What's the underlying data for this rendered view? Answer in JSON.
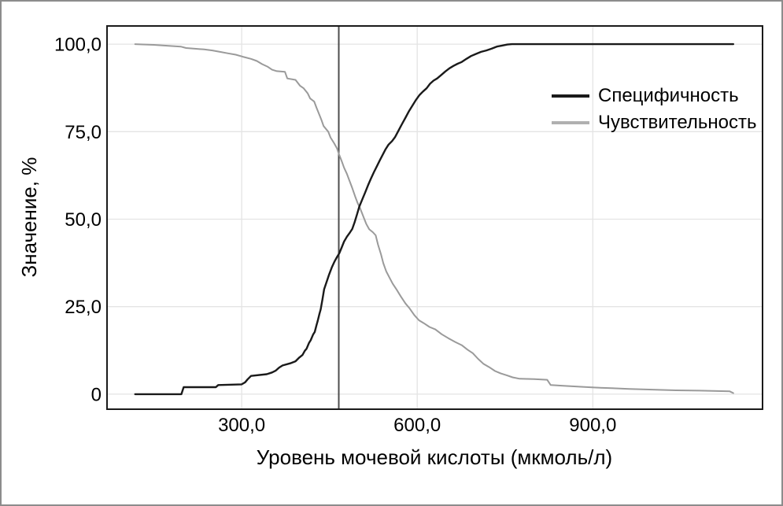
{
  "figure": {
    "background_color": "#ffffff",
    "outer_border_color": "#8c8c8c"
  },
  "colors": {
    "plot_border": "#1a1a1a",
    "gridline": "#e4e4e4",
    "reference_line": "#4d4d4d",
    "text": "#000000",
    "specificity": "#1a1a1a",
    "sensitivity": "#9a9a9a",
    "sensitivity_swatch": "#b0b0b0"
  },
  "chart_data": {
    "type": "line",
    "title": "",
    "xlabel": "Уровень мочевой кислоты (мкмоль/л)",
    "ylabel": "Значение, %",
    "xlim": [
      70,
      1190
    ],
    "ylim": [
      -4.3,
      105.2
    ],
    "grid": true,
    "legend_position": "inside-upper-right",
    "reference_line_x": 466,
    "x_ticks": [
      {
        "value": 300,
        "label": "300,0"
      },
      {
        "value": 600,
        "label": "600,0"
      },
      {
        "value": 900,
        "label": "900,0"
      }
    ],
    "y_ticks": [
      {
        "value": 0,
        "label": "0"
      },
      {
        "value": 25,
        "label": "25,0"
      },
      {
        "value": 50,
        "label": "50,0"
      },
      {
        "value": 75,
        "label": "75,0"
      },
      {
        "value": 100,
        "label": "100,0"
      }
    ],
    "series": [
      {
        "name": "Специфичность",
        "color": "#1a1a1a",
        "stroke_width": 2.4,
        "points": [
          [
            118,
            0
          ],
          [
            165,
            0
          ],
          [
            197,
            0
          ],
          [
            201,
            2.0
          ],
          [
            256,
            2.0
          ],
          [
            260,
            2.6
          ],
          [
            300,
            2.8
          ],
          [
            306,
            3.4
          ],
          [
            310,
            4.2
          ],
          [
            316,
            5.2
          ],
          [
            343,
            5.7
          ],
          [
            352,
            6.2
          ],
          [
            358,
            6.7
          ],
          [
            364,
            7.6
          ],
          [
            370,
            8.2
          ],
          [
            383,
            8.8
          ],
          [
            392,
            9.4
          ],
          [
            398,
            10.4
          ],
          [
            404,
            11.2
          ],
          [
            408,
            12.4
          ],
          [
            411,
            13.0
          ],
          [
            415,
            14.6
          ],
          [
            418,
            15.4
          ],
          [
            422,
            17.0
          ],
          [
            425,
            17.8
          ],
          [
            428,
            19.8
          ],
          [
            430,
            21.0
          ],
          [
            433,
            23.0
          ],
          [
            435,
            24.2
          ],
          [
            438,
            27.0
          ],
          [
            441,
            30.0
          ],
          [
            445,
            32.0
          ],
          [
            449,
            34.0
          ],
          [
            454,
            36.2
          ],
          [
            459,
            38.0
          ],
          [
            463,
            39.2
          ],
          [
            467,
            40.3
          ],
          [
            471,
            41.9
          ],
          [
            475,
            43.6
          ],
          [
            480,
            45.0
          ],
          [
            485,
            46.2
          ],
          [
            489,
            47.2
          ],
          [
            493,
            49.1
          ],
          [
            497,
            51.3
          ],
          [
            501,
            53.6
          ],
          [
            506,
            55.6
          ],
          [
            511,
            57.6
          ],
          [
            516,
            59.7
          ],
          [
            521,
            61.6
          ],
          [
            526,
            63.4
          ],
          [
            531,
            65.1
          ],
          [
            536,
            66.8
          ],
          [
            541,
            68.4
          ],
          [
            546,
            70.0
          ],
          [
            551,
            71.3
          ],
          [
            557,
            72.3
          ],
          [
            562,
            73.4
          ],
          [
            568,
            75.3
          ],
          [
            574,
            77.2
          ],
          [
            580,
            79.0
          ],
          [
            586,
            80.9
          ],
          [
            592,
            82.5
          ],
          [
            598,
            84.1
          ],
          [
            604,
            85.5
          ],
          [
            610,
            86.5
          ],
          [
            616,
            87.4
          ],
          [
            622,
            88.7
          ],
          [
            628,
            89.6
          ],
          [
            634,
            90.2
          ],
          [
            641,
            91.2
          ],
          [
            648,
            92.2
          ],
          [
            655,
            93.1
          ],
          [
            662,
            93.8
          ],
          [
            669,
            94.4
          ],
          [
            676,
            94.9
          ],
          [
            684,
            95.8
          ],
          [
            692,
            96.6
          ],
          [
            700,
            97.2
          ],
          [
            709,
            97.8
          ],
          [
            718,
            98.2
          ],
          [
            727,
            98.7
          ],
          [
            736,
            99.3
          ],
          [
            745,
            99.6
          ],
          [
            754,
            99.9
          ],
          [
            762,
            100
          ],
          [
            850,
            100
          ],
          [
            1000,
            100
          ],
          [
            1140,
            100
          ]
        ]
      },
      {
        "name": "Чувствительность",
        "color": "#9a9a9a",
        "stroke_width": 2,
        "points": [
          [
            118,
            100
          ],
          [
            150,
            99.8
          ],
          [
            178,
            99.5
          ],
          [
            196,
            99.3
          ],
          [
            205,
            98.9
          ],
          [
            220,
            98.7
          ],
          [
            236,
            98.5
          ],
          [
            250,
            98.2
          ],
          [
            263,
            97.8
          ],
          [
            276,
            97.4
          ],
          [
            290,
            97.0
          ],
          [
            302,
            96.4
          ],
          [
            316,
            95.8
          ],
          [
            326,
            95.2
          ],
          [
            335,
            94.3
          ],
          [
            344,
            93.6
          ],
          [
            352,
            92.7
          ],
          [
            360,
            92.3
          ],
          [
            374,
            92.1
          ],
          [
            378,
            90.2
          ],
          [
            392,
            89.8
          ],
          [
            400,
            88.1
          ],
          [
            406,
            87.4
          ],
          [
            413,
            85.9
          ],
          [
            417,
            84.5
          ],
          [
            424,
            83.6
          ],
          [
            428,
            81.8
          ],
          [
            432,
            80.2
          ],
          [
            436,
            78.5
          ],
          [
            440,
            76.6
          ],
          [
            448,
            75.0
          ],
          [
            452,
            73.3
          ],
          [
            458,
            71.7
          ],
          [
            463,
            70.2
          ],
          [
            466,
            68.7
          ],
          [
            471,
            66.6
          ],
          [
            475,
            64.7
          ],
          [
            480,
            62.9
          ],
          [
            484,
            61.1
          ],
          [
            489,
            58.9
          ],
          [
            494,
            56.5
          ],
          [
            498,
            54.7
          ],
          [
            503,
            52.9
          ],
          [
            508,
            50.7
          ],
          [
            513,
            48.6
          ],
          [
            518,
            47.1
          ],
          [
            524,
            46.3
          ],
          [
            529,
            45.4
          ],
          [
            533,
            42.7
          ],
          [
            538,
            40.0
          ],
          [
            542,
            37.4
          ],
          [
            547,
            35.1
          ],
          [
            552,
            33.5
          ],
          [
            558,
            31.6
          ],
          [
            565,
            29.8
          ],
          [
            572,
            27.9
          ],
          [
            580,
            25.9
          ],
          [
            587,
            24.5
          ],
          [
            595,
            22.6
          ],
          [
            603,
            21.1
          ],
          [
            611,
            20.3
          ],
          [
            621,
            19.2
          ],
          [
            631,
            18.5
          ],
          [
            642,
            17.1
          ],
          [
            653,
            16.0
          ],
          [
            665,
            14.9
          ],
          [
            676,
            14.0
          ],
          [
            686,
            12.7
          ],
          [
            695,
            11.7
          ],
          [
            704,
            10.1
          ],
          [
            713,
            8.7
          ],
          [
            723,
            7.7
          ],
          [
            733,
            6.6
          ],
          [
            743,
            5.9
          ],
          [
            753,
            5.4
          ],
          [
            763,
            4.8
          ],
          [
            775,
            4.4
          ],
          [
            800,
            4.3
          ],
          [
            822,
            4.1
          ],
          [
            828,
            2.6
          ],
          [
            850,
            2.4
          ],
          [
            880,
            2.1
          ],
          [
            902,
            1.9
          ],
          [
            932,
            1.7
          ],
          [
            962,
            1.5
          ],
          [
            1002,
            1.3
          ],
          [
            1042,
            1.1
          ],
          [
            1082,
            1.0
          ],
          [
            1112,
            0.9
          ],
          [
            1134,
            0.8
          ],
          [
            1140,
            0.3
          ]
        ]
      }
    ]
  }
}
